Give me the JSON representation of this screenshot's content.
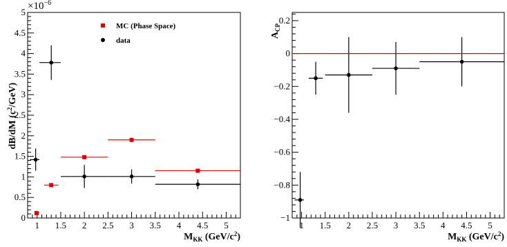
{
  "chart_data": [
    {
      "type": "scatter",
      "ylabel": "dB/dM (c",
      "ylabel_sup": "2",
      "ylabel_tail": "/GeV)",
      "exponent": "×10",
      "exponent_sup": "−6",
      "xlabel": "M",
      "xlabel_sub": "KK",
      "xlabel_tail": " (GeV/c",
      "xlabel_sup": "2",
      "xlabel_close": ")",
      "xlim": [
        0.8,
        5.3
      ],
      "ylim": [
        0,
        5
      ],
      "xticks": [
        "1",
        "1.5",
        "2",
        "2.5",
        "3",
        "3.5",
        "4",
        "4.5",
        "5"
      ],
      "yticks": [
        "0",
        "0.5",
        "1",
        "1.5",
        "2",
        "2.5",
        "3",
        "3.5",
        "4",
        "4.5",
        "5"
      ],
      "legend": {
        "placement": "top-center",
        "entries": [
          {
            "label": "MC (Phase Space)",
            "color": "#e00000",
            "marker": "square"
          },
          {
            "label": "data",
            "color": "#000000",
            "marker": "circle"
          }
        ]
      },
      "series": [
        {
          "name": "MC (Phase Space)",
          "color": "#e00000",
          "marker": "square",
          "points": [
            {
              "x": 0.99,
              "xlo": 0.95,
              "xhi": 1.05,
              "y": 0.12,
              "yerr": 0.0
            },
            {
              "x": 1.3,
              "xlo": 1.15,
              "xhi": 1.45,
              "y": 0.8,
              "yerr": 0.0
            },
            {
              "x": 2.0,
              "xlo": 1.5,
              "xhi": 2.5,
              "y": 1.48,
              "yerr": 0.0
            },
            {
              "x": 3.0,
              "xlo": 2.5,
              "xhi": 3.5,
              "y": 1.9,
              "yerr": 0.0
            },
            {
              "x": 4.4,
              "xlo": 3.5,
              "xhi": 5.3,
              "y": 1.15,
              "yerr": 0.0
            }
          ]
        },
        {
          "name": "data",
          "color": "#000000",
          "marker": "circle",
          "points": [
            {
              "x": 0.97,
              "xlo": 0.85,
              "xhi": 1.05,
              "y": 1.42,
              "yerr": 0.27
            },
            {
              "x": 1.3,
              "xlo": 1.05,
              "xhi": 1.5,
              "y": 3.78,
              "yerr": 0.42
            },
            {
              "x": 2.0,
              "xlo": 1.5,
              "xhi": 2.5,
              "y": 1.01,
              "yerr": 0.28
            },
            {
              "x": 3.0,
              "xlo": 2.5,
              "xhi": 3.5,
              "y": 1.01,
              "yerr": 0.17
            },
            {
              "x": 4.4,
              "xlo": 3.5,
              "xhi": 5.3,
              "y": 0.82,
              "yerr": 0.12
            }
          ]
        }
      ]
    },
    {
      "type": "scatter",
      "ylabel": "A",
      "ylabel_sub": "CP",
      "xlabel": "M",
      "xlabel_sub": "KK",
      "xlabel_tail": " (GeV/c",
      "xlabel_sup": "2",
      "xlabel_close": ")",
      "xlim": [
        0.8,
        5.3
      ],
      "ylim": [
        -1,
        0.25
      ],
      "xticks": [
        "1",
        "1.5",
        "2",
        "2.5",
        "3",
        "3.5",
        "4",
        "4.5",
        "5"
      ],
      "yticks": [
        "−1",
        "−0.8",
        "−0.6",
        "−0.4",
        "−0.2",
        "0",
        "0.2"
      ],
      "ytick_values": [
        -1,
        -0.8,
        -0.6,
        -0.4,
        -0.2,
        0,
        0.2
      ],
      "reference_line": {
        "y": 0,
        "color": "#e00000"
      },
      "series": [
        {
          "name": "",
          "color": "#000000",
          "marker": "circle",
          "points": [
            {
              "x": 0.97,
              "xlo": 0.85,
              "xhi": 1.05,
              "y": -0.89,
              "yerr": 0.17
            },
            {
              "x": 1.3,
              "xlo": 1.15,
              "xhi": 1.45,
              "y": -0.15,
              "yerr": 0.1
            },
            {
              "x": 2.0,
              "xlo": 1.5,
              "xhi": 2.5,
              "y": -0.13,
              "yerr": 0.23
            },
            {
              "x": 3.0,
              "xlo": 2.5,
              "xhi": 3.5,
              "y": -0.09,
              "yerr": 0.16
            },
            {
              "x": 4.4,
              "xlo": 3.5,
              "xhi": 5.3,
              "y": -0.05,
              "yerr": 0.15
            }
          ]
        }
      ]
    }
  ]
}
